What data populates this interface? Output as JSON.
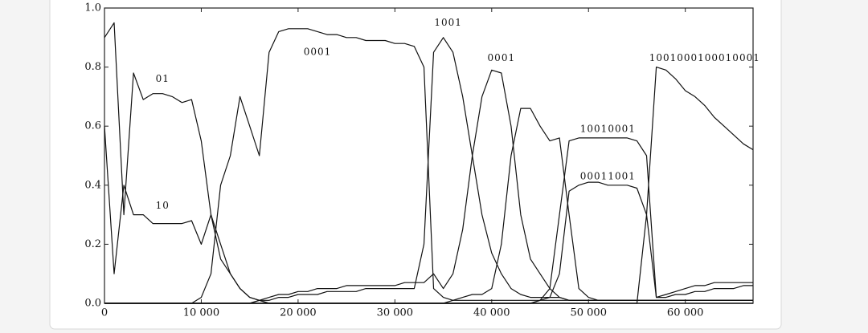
{
  "chart_data": {
    "type": "line",
    "color": "#111111",
    "grid": false,
    "x": [
      0,
      1000,
      2000,
      3000,
      4000,
      5000,
      6000,
      7000,
      8000,
      9000,
      10000,
      11000,
      12000,
      13000,
      14000,
      15000,
      16000,
      17000,
      18000,
      19000,
      20000,
      21000,
      22000,
      23000,
      24000,
      25000,
      26000,
      27000,
      28000,
      29000,
      30000,
      31000,
      32000,
      33000,
      34000,
      35000,
      36000,
      37000,
      38000,
      39000,
      40000,
      41000,
      42000,
      43000,
      44000,
      45000,
      46000,
      47000,
      48000,
      49000,
      50000,
      51000,
      52000,
      53000,
      54000,
      55000,
      56000,
      57000,
      58000,
      59000,
      60000,
      61000,
      62000,
      63000,
      64000,
      65000,
      66000,
      67000
    ],
    "xlim": [
      0,
      67000
    ],
    "xticks": [
      0,
      {
        "value": 10000,
        "label": "10 000"
      },
      {
        "value": 20000,
        "label": "20 000"
      },
      {
        "value": 30000,
        "label": "30 000"
      },
      {
        "value": 40000,
        "label": "40 000"
      },
      {
        "value": 50000,
        "label": "50 000"
      },
      {
        "value": 60000,
        "label": "60 000"
      }
    ],
    "ylim": [
      0,
      1
    ],
    "yticks": [
      {
        "value": 0,
        "label": "0.0"
      },
      0.2,
      0.4,
      0.6,
      0.8,
      {
        "value": 1,
        "label": "1.0"
      }
    ],
    "series": [
      {
        "name": "01",
        "values": [
          0.9,
          0.95,
          0.3,
          0.78,
          0.69,
          0.71,
          0.71,
          0.7,
          0.68,
          0.69,
          0.55,
          0.3,
          0.15,
          0.1,
          0.05,
          0.02,
          0.01,
          0,
          0,
          0,
          0,
          0,
          0,
          0,
          0,
          0,
          0,
          0,
          0,
          0,
          0,
          0,
          0,
          0,
          0,
          0,
          0,
          0,
          0,
          0,
          0,
          0,
          0,
          0,
          0,
          0,
          0,
          0,
          0,
          0,
          0,
          0,
          0,
          0,
          0,
          0,
          0,
          0,
          0,
          0,
          0,
          0,
          0,
          0,
          0,
          0,
          0,
          0
        ]
      },
      {
        "name": "10",
        "values": [
          0.6,
          0.1,
          0.4,
          0.3,
          0.3,
          0.27,
          0.27,
          0.27,
          0.27,
          0.28,
          0.2,
          0.3,
          0.2,
          0.1,
          0.05,
          0.02,
          0.01,
          0,
          0,
          0,
          0,
          0,
          0,
          0,
          0,
          0,
          0,
          0,
          0,
          0,
          0,
          0,
          0,
          0,
          0,
          0,
          0,
          0,
          0,
          0,
          0,
          0,
          0,
          0,
          0,
          0,
          0,
          0,
          0,
          0,
          0,
          0,
          0,
          0,
          0,
          0,
          0,
          0,
          0,
          0,
          0,
          0,
          0,
          0,
          0,
          0,
          0,
          0
        ]
      },
      {
        "name": "0001",
        "values": [
          0,
          0,
          0,
          0,
          0,
          0,
          0,
          0,
          0,
          0,
          0.02,
          0.1,
          0.4,
          0.5,
          0.7,
          0.6,
          0.5,
          0.85,
          0.92,
          0.93,
          0.93,
          0.93,
          0.92,
          0.91,
          0.91,
          0.9,
          0.9,
          0.89,
          0.89,
          0.89,
          0.88,
          0.88,
          0.87,
          0.8,
          0.05,
          0.02,
          0.01,
          0.01,
          0.01,
          0.01,
          0.01,
          0.01,
          0.01,
          0.01,
          0.01,
          0.01,
          0.01,
          0.01,
          0.01,
          0.01,
          0.01,
          0.01,
          0.01,
          0.01,
          0.01,
          0.01,
          0.01,
          0.01,
          0.01,
          0.01,
          0.01,
          0.01,
          0.01,
          0.01,
          0.01,
          0.01,
          0.01,
          0.01
        ]
      },
      {
        "name": "1001",
        "values": [
          0,
          0,
          0,
          0,
          0,
          0,
          0,
          0,
          0,
          0,
          0,
          0,
          0,
          0,
          0,
          0,
          0.01,
          0.01,
          0.02,
          0.02,
          0.03,
          0.03,
          0.03,
          0.04,
          0.04,
          0.04,
          0.04,
          0.05,
          0.05,
          0.05,
          0.05,
          0.05,
          0.05,
          0.2,
          0.85,
          0.9,
          0.85,
          0.7,
          0.5,
          0.3,
          0.17,
          0.1,
          0.05,
          0.03,
          0.02,
          0.02,
          0.02,
          0.02,
          0.01,
          0.01,
          0.01,
          0.01,
          0.01,
          0.01,
          0.01,
          0.01,
          0.01,
          0.01,
          0.01,
          0.01,
          0.01,
          0.01,
          0.01,
          0.01,
          0.01,
          0.01,
          0.01,
          0.01
        ]
      },
      {
        "name": "0001",
        "values": [
          0,
          0,
          0,
          0,
          0,
          0,
          0,
          0,
          0,
          0,
          0,
          0,
          0,
          0,
          0,
          0,
          0.01,
          0.02,
          0.03,
          0.03,
          0.04,
          0.04,
          0.05,
          0.05,
          0.05,
          0.06,
          0.06,
          0.06,
          0.06,
          0.06,
          0.06,
          0.07,
          0.07,
          0.07,
          0.1,
          0.05,
          0.1,
          0.25,
          0.5,
          0.7,
          0.79,
          0.78,
          0.6,
          0.3,
          0.15,
          0.1,
          0.05,
          0.02,
          0.01,
          0.01,
          0.01,
          0.01,
          0.01,
          0.01,
          0.01,
          0.01,
          0.01,
          0.01,
          0.01,
          0.01,
          0.01,
          0.01,
          0.01,
          0.01,
          0.01,
          0.01,
          0.01,
          0.01
        ]
      },
      {
        "values": [
          0,
          0,
          0,
          0,
          0,
          0,
          0,
          0,
          0,
          0,
          0,
          0,
          0,
          0,
          0,
          0,
          0,
          0,
          0,
          0,
          0,
          0,
          0,
          0,
          0,
          0,
          0,
          0,
          0,
          0,
          0,
          0,
          0,
          0,
          0,
          0,
          0.01,
          0.02,
          0.03,
          0.03,
          0.05,
          0.2,
          0.5,
          0.66,
          0.66,
          0.6,
          0.55,
          0.56,
          0.3,
          0.05,
          0.02,
          0.01,
          0.01,
          0.01,
          0.01,
          0.01,
          0.01,
          0.01,
          0.01,
          0.01,
          0.01,
          0.01,
          0.01,
          0.01,
          0.01,
          0.01,
          0.01,
          0.01
        ]
      },
      {
        "name": "10010001",
        "values": [
          0,
          0,
          0,
          0,
          0,
          0,
          0,
          0,
          0,
          0,
          0,
          0,
          0,
          0,
          0,
          0,
          0,
          0,
          0,
          0,
          0,
          0,
          0,
          0,
          0,
          0,
          0,
          0,
          0,
          0,
          0,
          0,
          0,
          0,
          0,
          0,
          0,
          0,
          0,
          0,
          0,
          0,
          0,
          0,
          0,
          0.01,
          0.05,
          0.3,
          0.55,
          0.56,
          0.56,
          0.56,
          0.56,
          0.56,
          0.56,
          0.55,
          0.5,
          0.02,
          0.02,
          0.03,
          0.03,
          0.04,
          0.04,
          0.05,
          0.05,
          0.05,
          0.06,
          0.06
        ]
      },
      {
        "name": "00011001",
        "values": [
          0,
          0,
          0,
          0,
          0,
          0,
          0,
          0,
          0,
          0,
          0,
          0,
          0,
          0,
          0,
          0,
          0,
          0,
          0,
          0,
          0,
          0,
          0,
          0,
          0,
          0,
          0,
          0,
          0,
          0,
          0,
          0,
          0,
          0,
          0,
          0,
          0,
          0,
          0,
          0,
          0,
          0,
          0,
          0,
          0,
          0.01,
          0.02,
          0.1,
          0.38,
          0.4,
          0.41,
          0.41,
          0.4,
          0.4,
          0.4,
          0.39,
          0.3,
          0.02,
          0.03,
          0.04,
          0.05,
          0.06,
          0.06,
          0.07,
          0.07,
          0.07,
          0.07,
          0.07
        ]
      },
      {
        "name": "1001000100010001",
        "values": [
          0,
          0,
          0,
          0,
          0,
          0,
          0,
          0,
          0,
          0,
          0,
          0,
          0,
          0,
          0,
          0,
          0,
          0,
          0,
          0,
          0,
          0,
          0,
          0,
          0,
          0,
          0,
          0,
          0,
          0,
          0,
          0,
          0,
          0,
          0,
          0,
          0,
          0,
          0,
          0,
          0,
          0,
          0,
          0,
          0,
          0,
          0,
          0,
          0,
          0,
          0,
          0,
          0,
          0,
          0,
          0,
          0.3,
          0.8,
          0.79,
          0.76,
          0.72,
          0.7,
          0.67,
          0.63,
          0.6,
          0.57,
          0.54,
          0.52
        ]
      }
    ]
  }
}
